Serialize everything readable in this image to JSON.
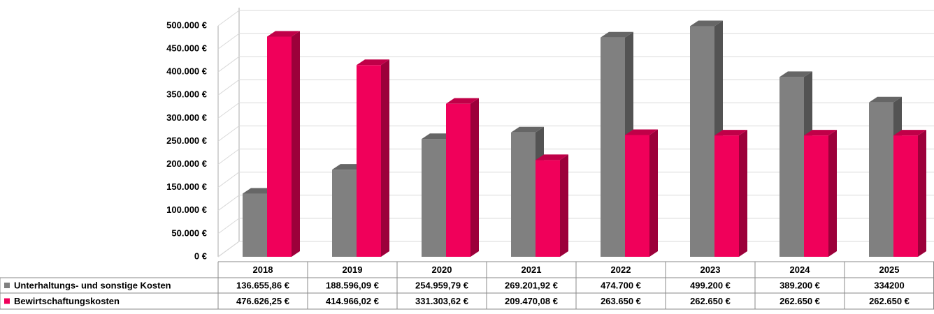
{
  "chart_data": {
    "type": "bar",
    "categories": [
      "2018",
      "2019",
      "2020",
      "2021",
      "2022",
      "2023",
      "2024",
      "2025"
    ],
    "series": [
      {
        "name": "Unterhaltungs- und sonstige Kosten",
        "color": "#808080",
        "values": [
          136655.86,
          188596.09,
          254959.79,
          269201.92,
          474700,
          499200,
          389200,
          334200
        ],
        "value_labels": [
          "136.655,86 €",
          "188.596,09 €",
          "254.959,79 €",
          "269.201,92 €",
          "474.700 €",
          "499.200 €",
          "389.200 €",
          "334200"
        ]
      },
      {
        "name": "Bewirtschaftungskosten",
        "color": "#f0005a",
        "values": [
          476626.25,
          414966.02,
          331303.62,
          209470.08,
          263650,
          262650,
          262650,
          262650
        ],
        "value_labels": [
          "476.626,25 €",
          "414.966,02 €",
          "331.303,62 €",
          "209.470,08 €",
          "263.650 €",
          "262.650 €",
          "262.650 €",
          "262.650 €"
        ]
      }
    ],
    "ylim": [
      0,
      500000
    ],
    "yticks": [
      {
        "value": 0,
        "label": "0 €"
      },
      {
        "value": 50000,
        "label": "50.000 €"
      },
      {
        "value": 100000,
        "label": "100.000 €"
      },
      {
        "value": 150000,
        "label": "150.000 €"
      },
      {
        "value": 200000,
        "label": "200.000 €"
      },
      {
        "value": 250000,
        "label": "250.000 €"
      },
      {
        "value": 300000,
        "label": "300.000 €"
      },
      {
        "value": 350000,
        "label": "350.000 €"
      },
      {
        "value": 400000,
        "label": "400.000 €"
      },
      {
        "value": 450000,
        "label": "450.000 €"
      },
      {
        "value": 500000,
        "label": "500.000 €"
      }
    ],
    "grid": true
  }
}
